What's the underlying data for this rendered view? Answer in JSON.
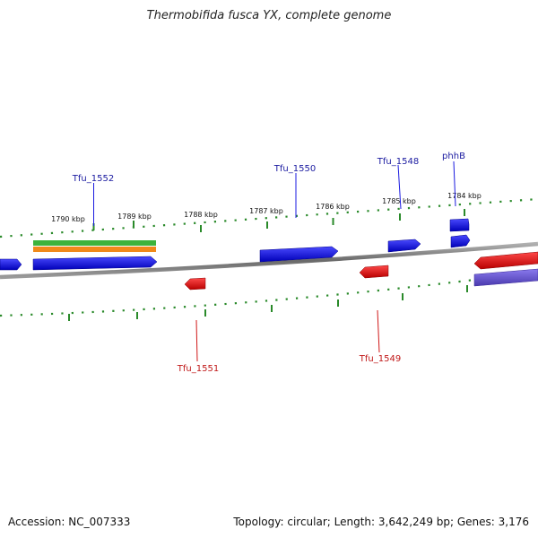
{
  "title": "Thermobifida fusca YX, complete genome",
  "footer": {
    "accession": "Accession: NC_007333",
    "summary": "Topology: circular; Length: 3,642,249 bp; Genes: 3,176"
  },
  "tick_labels": [
    "1790 kbp",
    "1789 kbp",
    "1788 kbp",
    "1787 kbp",
    "1786 kbp",
    "1785 kbp",
    "1784 kbp"
  ],
  "forward_genes": [
    "Tfu_1552",
    "Tfu_1550",
    "Tfu_1548",
    "phhB"
  ],
  "reverse_genes": [
    "Tfu_1551",
    "Tfu_1549"
  ],
  "colors": {
    "forward": "#1515e0",
    "reverse": "#e01515",
    "purple": "#6a5acd",
    "green": "#3cb33c",
    "orange": "#f08a1a",
    "backbone": "#808080",
    "tick": "#2a8a2a",
    "forward_label": "#1a1aa0",
    "reverse_label": "#c01818"
  }
}
